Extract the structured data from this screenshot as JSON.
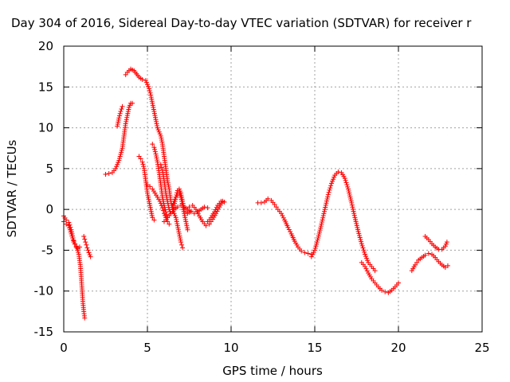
{
  "chart_data": {
    "type": "scatter",
    "title": "Day 304 of 2016, Sidereal Day-to-day VTEC variation (SDTVAR) for receiver r",
    "xlabel": "GPS time / hours",
    "ylabel": "SDTVAR / TECUs",
    "xlim": [
      0,
      25
    ],
    "ylim": [
      -15,
      20
    ],
    "xticks": [
      0,
      5,
      10,
      15,
      20,
      25
    ],
    "yticks": [
      -15,
      -10,
      -5,
      0,
      5,
      10,
      15,
      20
    ],
    "xtick_labels": [
      "0",
      "5",
      "10",
      "15",
      "20",
      "25"
    ],
    "ytick_labels": [
      "-15",
      "-10",
      "-5",
      "0",
      "5",
      "10",
      "15",
      "20"
    ],
    "grid": true,
    "marker": "+",
    "color": "#ff0000",
    "series": [
      {
        "segments": [
          [
            [
              0.0,
              -0.8
            ],
            [
              0.15,
              -1.3
            ],
            [
              0.3,
              -1.6
            ],
            [
              0.45,
              -2.5
            ],
            [
              0.55,
              -3.5
            ],
            [
              0.65,
              -4.2
            ],
            [
              0.75,
              -4.6
            ],
            [
              0.85,
              -4.8
            ],
            [
              0.95,
              -4.6
            ]
          ],
          [
            [
              0.0,
              -1.5
            ],
            [
              0.15,
              -1.8
            ],
            [
              0.3,
              -2.0
            ],
            [
              0.45,
              -3.0
            ],
            [
              0.6,
              -4.0
            ],
            [
              0.75,
              -4.5
            ],
            [
              0.9,
              -5.5
            ],
            [
              1.0,
              -7.0
            ],
            [
              1.05,
              -8.5
            ],
            [
              1.1,
              -10.0
            ],
            [
              1.15,
              -11.5
            ],
            [
              1.2,
              -12.5
            ],
            [
              1.25,
              -13.3
            ]
          ],
          [
            [
              1.2,
              -3.3
            ],
            [
              1.3,
              -4.0
            ],
            [
              1.4,
              -4.7
            ],
            [
              1.5,
              -5.3
            ],
            [
              1.6,
              -5.8
            ]
          ],
          [
            [
              2.5,
              4.3
            ],
            [
              2.7,
              4.4
            ],
            [
              2.9,
              4.5
            ],
            [
              3.1,
              5.0
            ],
            [
              3.3,
              6.0
            ],
            [
              3.5,
              7.5
            ],
            [
              3.6,
              9.0
            ],
            [
              3.7,
              10.5
            ],
            [
              3.8,
              11.5
            ],
            [
              3.9,
              12.5
            ],
            [
              4.0,
              13.0
            ],
            [
              4.1,
              13.0
            ]
          ],
          [
            [
              3.2,
              10.2
            ],
            [
              3.3,
              11.2
            ],
            [
              3.4,
              12.0
            ],
            [
              3.5,
              12.6
            ]
          ],
          [
            [
              3.7,
              16.5
            ],
            [
              3.8,
              16.8
            ],
            [
              3.9,
              17.0
            ],
            [
              4.0,
              17.2
            ],
            [
              4.1,
              17.1
            ],
            [
              4.2,
              17.0
            ],
            [
              4.35,
              16.6
            ],
            [
              4.5,
              16.2
            ],
            [
              4.7,
              15.9
            ],
            [
              4.9,
              15.8
            ],
            [
              5.0,
              15.3
            ],
            [
              5.1,
              14.8
            ],
            [
              5.2,
              14.0
            ],
            [
              5.3,
              13.0
            ],
            [
              5.4,
              12.0
            ],
            [
              5.5,
              11.0
            ],
            [
              5.6,
              10.0
            ],
            [
              5.7,
              9.5
            ],
            [
              5.8,
              9.0
            ],
            [
              5.9,
              8.0
            ],
            [
              6.0,
              6.5
            ],
            [
              6.1,
              5.0
            ],
            [
              6.2,
              3.5
            ],
            [
              6.3,
              2.5
            ],
            [
              6.4,
              1.0
            ],
            [
              6.5,
              0.0
            ],
            [
              6.6,
              -0.5
            ],
            [
              6.7,
              -1.0
            ],
            [
              6.8,
              -2.0
            ],
            [
              6.9,
              -3.0
            ],
            [
              7.0,
              -4.0
            ],
            [
              7.1,
              -4.7
            ]
          ],
          [
            [
              4.5,
              6.5
            ],
            [
              4.6,
              6.2
            ],
            [
              4.7,
              5.8
            ],
            [
              4.8,
              5.0
            ],
            [
              4.9,
              3.5
            ],
            [
              5.0,
              2.0
            ],
            [
              5.1,
              1.0
            ],
            [
              5.2,
              0.0
            ],
            [
              5.3,
              -1.0
            ],
            [
              5.4,
              -1.3
            ]
          ],
          [
            [
              5.0,
              3.0
            ],
            [
              5.15,
              2.8
            ],
            [
              5.3,
              2.5
            ],
            [
              5.45,
              2.0
            ],
            [
              5.6,
              1.5
            ],
            [
              5.75,
              1.0
            ],
            [
              5.9,
              0.2
            ],
            [
              6.0,
              -0.5
            ],
            [
              6.1,
              -1.0
            ],
            [
              6.2,
              -1.5
            ],
            [
              6.3,
              -1.8
            ]
          ],
          [
            [
              5.3,
              8.0
            ],
            [
              5.4,
              7.6
            ],
            [
              5.5,
              6.8
            ],
            [
              5.6,
              5.8
            ],
            [
              5.7,
              4.5
            ],
            [
              5.8,
              3.0
            ],
            [
              5.9,
              1.5
            ],
            [
              6.0,
              0.5
            ],
            [
              6.1,
              -0.3
            ],
            [
              6.2,
              -1.0
            ]
          ],
          [
            [
              5.8,
              5.5
            ],
            [
              5.9,
              4.8
            ],
            [
              6.0,
              3.5
            ],
            [
              6.1,
              2.0
            ],
            [
              6.2,
              1.0
            ],
            [
              6.3,
              0.0
            ],
            [
              6.4,
              -0.5
            ],
            [
              6.5,
              -0.3
            ],
            [
              6.6,
              0.5
            ],
            [
              6.7,
              1.5
            ],
            [
              6.8,
              2.3
            ],
            [
              6.9,
              2.5
            ],
            [
              7.0,
              2.0
            ],
            [
              7.1,
              1.0
            ],
            [
              7.2,
              0.0
            ],
            [
              7.3,
              -0.3
            ],
            [
              7.4,
              -0.5
            ],
            [
              7.6,
              -0.2
            ]
          ],
          [
            [
              6.5,
              0.5
            ],
            [
              6.7,
              1.5
            ],
            [
              6.9,
              2.0
            ],
            [
              7.0,
              1.5
            ],
            [
              7.1,
              0.5
            ],
            [
              7.2,
              -0.5
            ],
            [
              7.3,
              -1.5
            ],
            [
              7.4,
              -2.5
            ]
          ],
          [
            [
              6.0,
              -1.5
            ],
            [
              6.2,
              -1.0
            ],
            [
              6.4,
              -0.5
            ],
            [
              6.6,
              0.0
            ],
            [
              6.8,
              0.3
            ],
            [
              7.0,
              0.5
            ],
            [
              7.2,
              0.3
            ],
            [
              7.4,
              0.0
            ],
            [
              7.6,
              -0.3
            ],
            [
              7.8,
              -0.5
            ],
            [
              8.0,
              -0.3
            ],
            [
              8.2,
              0.0
            ],
            [
              8.4,
              0.3
            ],
            [
              8.6,
              0.2
            ]
          ],
          [
            [
              7.5,
              0.3
            ],
            [
              7.7,
              0.5
            ],
            [
              7.9,
              0.0
            ],
            [
              8.1,
              -0.8
            ],
            [
              8.3,
              -1.5
            ],
            [
              8.5,
              -2.0
            ],
            [
              8.7,
              -1.8
            ],
            [
              8.9,
              -1.2
            ],
            [
              9.1,
              -0.5
            ],
            [
              9.3,
              0.3
            ],
            [
              9.5,
              1.0
            ],
            [
              9.6,
              0.9
            ]
          ],
          [
            [
              8.6,
              -1.5
            ],
            [
              8.8,
              -1.0
            ],
            [
              9.0,
              -0.3
            ],
            [
              9.2,
              0.5
            ],
            [
              9.4,
              1.0
            ],
            [
              9.5,
              1.0
            ]
          ],
          [
            [
              11.6,
              0.8
            ],
            [
              11.8,
              0.8
            ],
            [
              12.0,
              0.9
            ],
            [
              12.2,
              1.3
            ],
            [
              12.4,
              1.1
            ],
            [
              12.6,
              0.6
            ],
            [
              12.8,
              0.0
            ],
            [
              13.0,
              -0.5
            ],
            [
              13.2,
              -1.3
            ],
            [
              13.4,
              -2.2
            ],
            [
              13.6,
              -3.0
            ],
            [
              13.8,
              -3.9
            ],
            [
              14.0,
              -4.6
            ],
            [
              14.2,
              -5.1
            ],
            [
              14.4,
              -5.3
            ],
            [
              14.6,
              -5.4
            ],
            [
              14.8,
              -5.5
            ]
          ],
          [
            [
              14.8,
              -5.8
            ],
            [
              15.0,
              -5.0
            ],
            [
              15.2,
              -3.5
            ],
            [
              15.4,
              -1.8
            ],
            [
              15.6,
              0.0
            ],
            [
              15.8,
              1.8
            ],
            [
              16.0,
              3.2
            ],
            [
              16.2,
              4.2
            ],
            [
              16.4,
              4.6
            ],
            [
              16.6,
              4.5
            ],
            [
              16.8,
              3.8
            ],
            [
              17.0,
              2.5
            ],
            [
              17.2,
              0.8
            ],
            [
              17.4,
              -1.0
            ],
            [
              17.6,
              -2.7
            ],
            [
              17.8,
              -4.2
            ],
            [
              18.0,
              -5.5
            ],
            [
              18.2,
              -6.5
            ],
            [
              18.4,
              -7.0
            ],
            [
              18.6,
              -7.5
            ]
          ],
          [
            [
              17.8,
              -6.5
            ],
            [
              18.0,
              -7.0
            ],
            [
              18.2,
              -7.8
            ],
            [
              18.4,
              -8.5
            ],
            [
              18.6,
              -9.0
            ],
            [
              18.8,
              -9.5
            ],
            [
              19.0,
              -9.9
            ],
            [
              19.2,
              -10.1
            ],
            [
              19.4,
              -10.2
            ],
            [
              19.6,
              -9.9
            ],
            [
              19.8,
              -9.5
            ],
            [
              20.0,
              -9.0
            ]
          ],
          [
            [
              20.8,
              -7.5
            ],
            [
              21.0,
              -6.8
            ],
            [
              21.2,
              -6.2
            ],
            [
              21.4,
              -5.9
            ],
            [
              21.6,
              -5.6
            ],
            [
              21.8,
              -5.4
            ],
            [
              22.0,
              -5.5
            ],
            [
              22.2,
              -5.9
            ],
            [
              22.4,
              -6.4
            ],
            [
              22.6,
              -6.8
            ],
            [
              22.8,
              -7.1
            ],
            [
              22.95,
              -6.9
            ]
          ],
          [
            [
              21.6,
              -3.3
            ],
            [
              21.8,
              -3.7
            ],
            [
              22.0,
              -4.2
            ],
            [
              22.2,
              -4.6
            ],
            [
              22.4,
              -4.9
            ],
            [
              22.6,
              -4.9
            ],
            [
              22.8,
              -4.5
            ],
            [
              22.9,
              -4.0
            ]
          ]
        ]
      }
    ]
  }
}
